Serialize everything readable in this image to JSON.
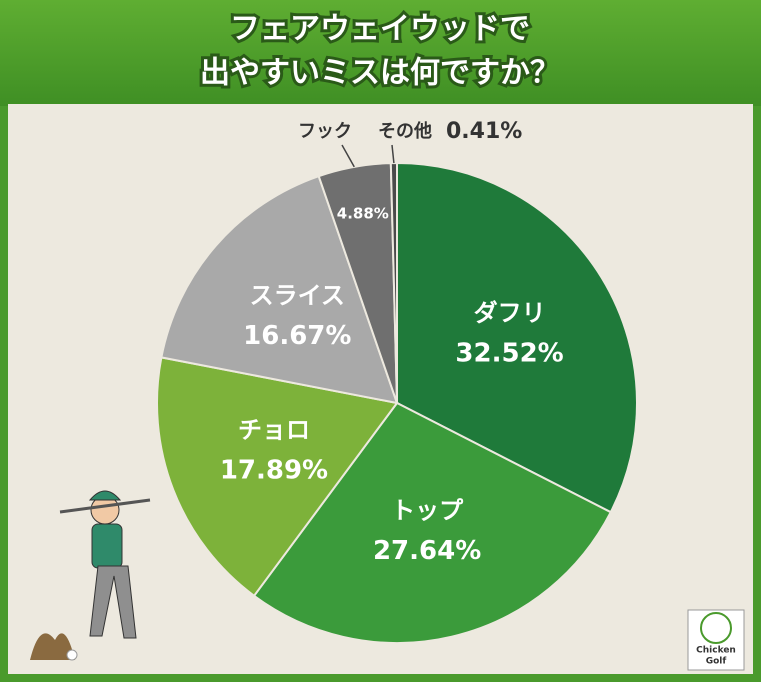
{
  "chart_data": {
    "type": "pie",
    "title": [
      "フェアウェイウッドで",
      "出やすいミスは何ですか？"
    ],
    "categories": [
      "ダフリ",
      "トップ",
      "チョロ",
      "スライス",
      "フック",
      "その他"
    ],
    "values": [
      32.52,
      27.64,
      17.89,
      16.67,
      4.88,
      0.41
    ],
    "value_labels": [
      "32.52%",
      "27.64%",
      "17.89%",
      "16.67%",
      "4.88%",
      "0.41%"
    ],
    "colors": [
      "#1f7a3a",
      "#3b9b3b",
      "#7db23a",
      "#a9a9a9",
      "#6f6f6f",
      "#4a4a4a"
    ]
  },
  "logo": [
    "Chicken",
    "Golf"
  ]
}
